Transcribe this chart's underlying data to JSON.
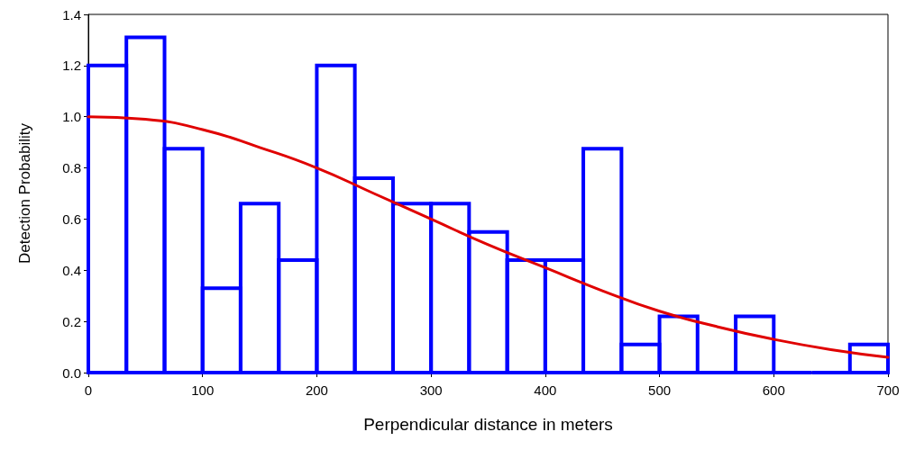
{
  "chart_data": {
    "type": "histogram",
    "xlabel": "Perpendicular distance in meters",
    "ylabel": "Detection Probability",
    "bins": [
      0,
      33.3,
      66.7,
      100,
      133.3,
      166.7,
      200,
      233.3,
      266.7,
      300,
      333.3,
      366.7,
      400,
      433.3,
      466.7,
      500,
      533.3,
      566.7,
      600,
      633.3,
      666.7,
      700
    ],
    "values": [
      1.2,
      1.31,
      0.875,
      0.33,
      0.66,
      0.44,
      1.2,
      0.76,
      0.66,
      0.66,
      0.55,
      0.44,
      0.44,
      0.875,
      0.11,
      0.22,
      0.0,
      0.22,
      0.0,
      0.0,
      0.11
    ],
    "color": "#0000ff",
    "series": [
      {
        "type": "line",
        "color": "#e00000",
        "x": [
          0,
          50,
          100,
          150,
          200,
          250,
          300,
          350,
          400,
          450,
          500,
          550,
          600,
          650,
          700
        ],
        "values": [
          1.0,
          0.99,
          0.95,
          0.88,
          0.8,
          0.7,
          0.6,
          0.5,
          0.41,
          0.32,
          0.24,
          0.18,
          0.13,
          0.09,
          0.06
        ]
      }
    ],
    "xlim": [
      0,
      700
    ],
    "xticks": [
      0,
      100,
      200,
      300,
      400,
      500,
      600,
      700
    ],
    "ylim": [
      0,
      1.4
    ],
    "yticks": [
      {
        "value": 0,
        "label": "0.0"
      },
      {
        "value": 0.2,
        "label": "0.2"
      },
      {
        "value": 0.4,
        "label": "0.4"
      },
      {
        "value": 0.6,
        "label": "0.6"
      },
      {
        "value": 0.8,
        "label": "0.8"
      },
      {
        "value": 1.0,
        "label": "1.0"
      },
      {
        "value": 1.2,
        "label": "1.2"
      },
      {
        "value": 1.4,
        "label": "1.4"
      }
    ],
    "grid": false,
    "marker": "none",
    "line_style": "solid"
  }
}
